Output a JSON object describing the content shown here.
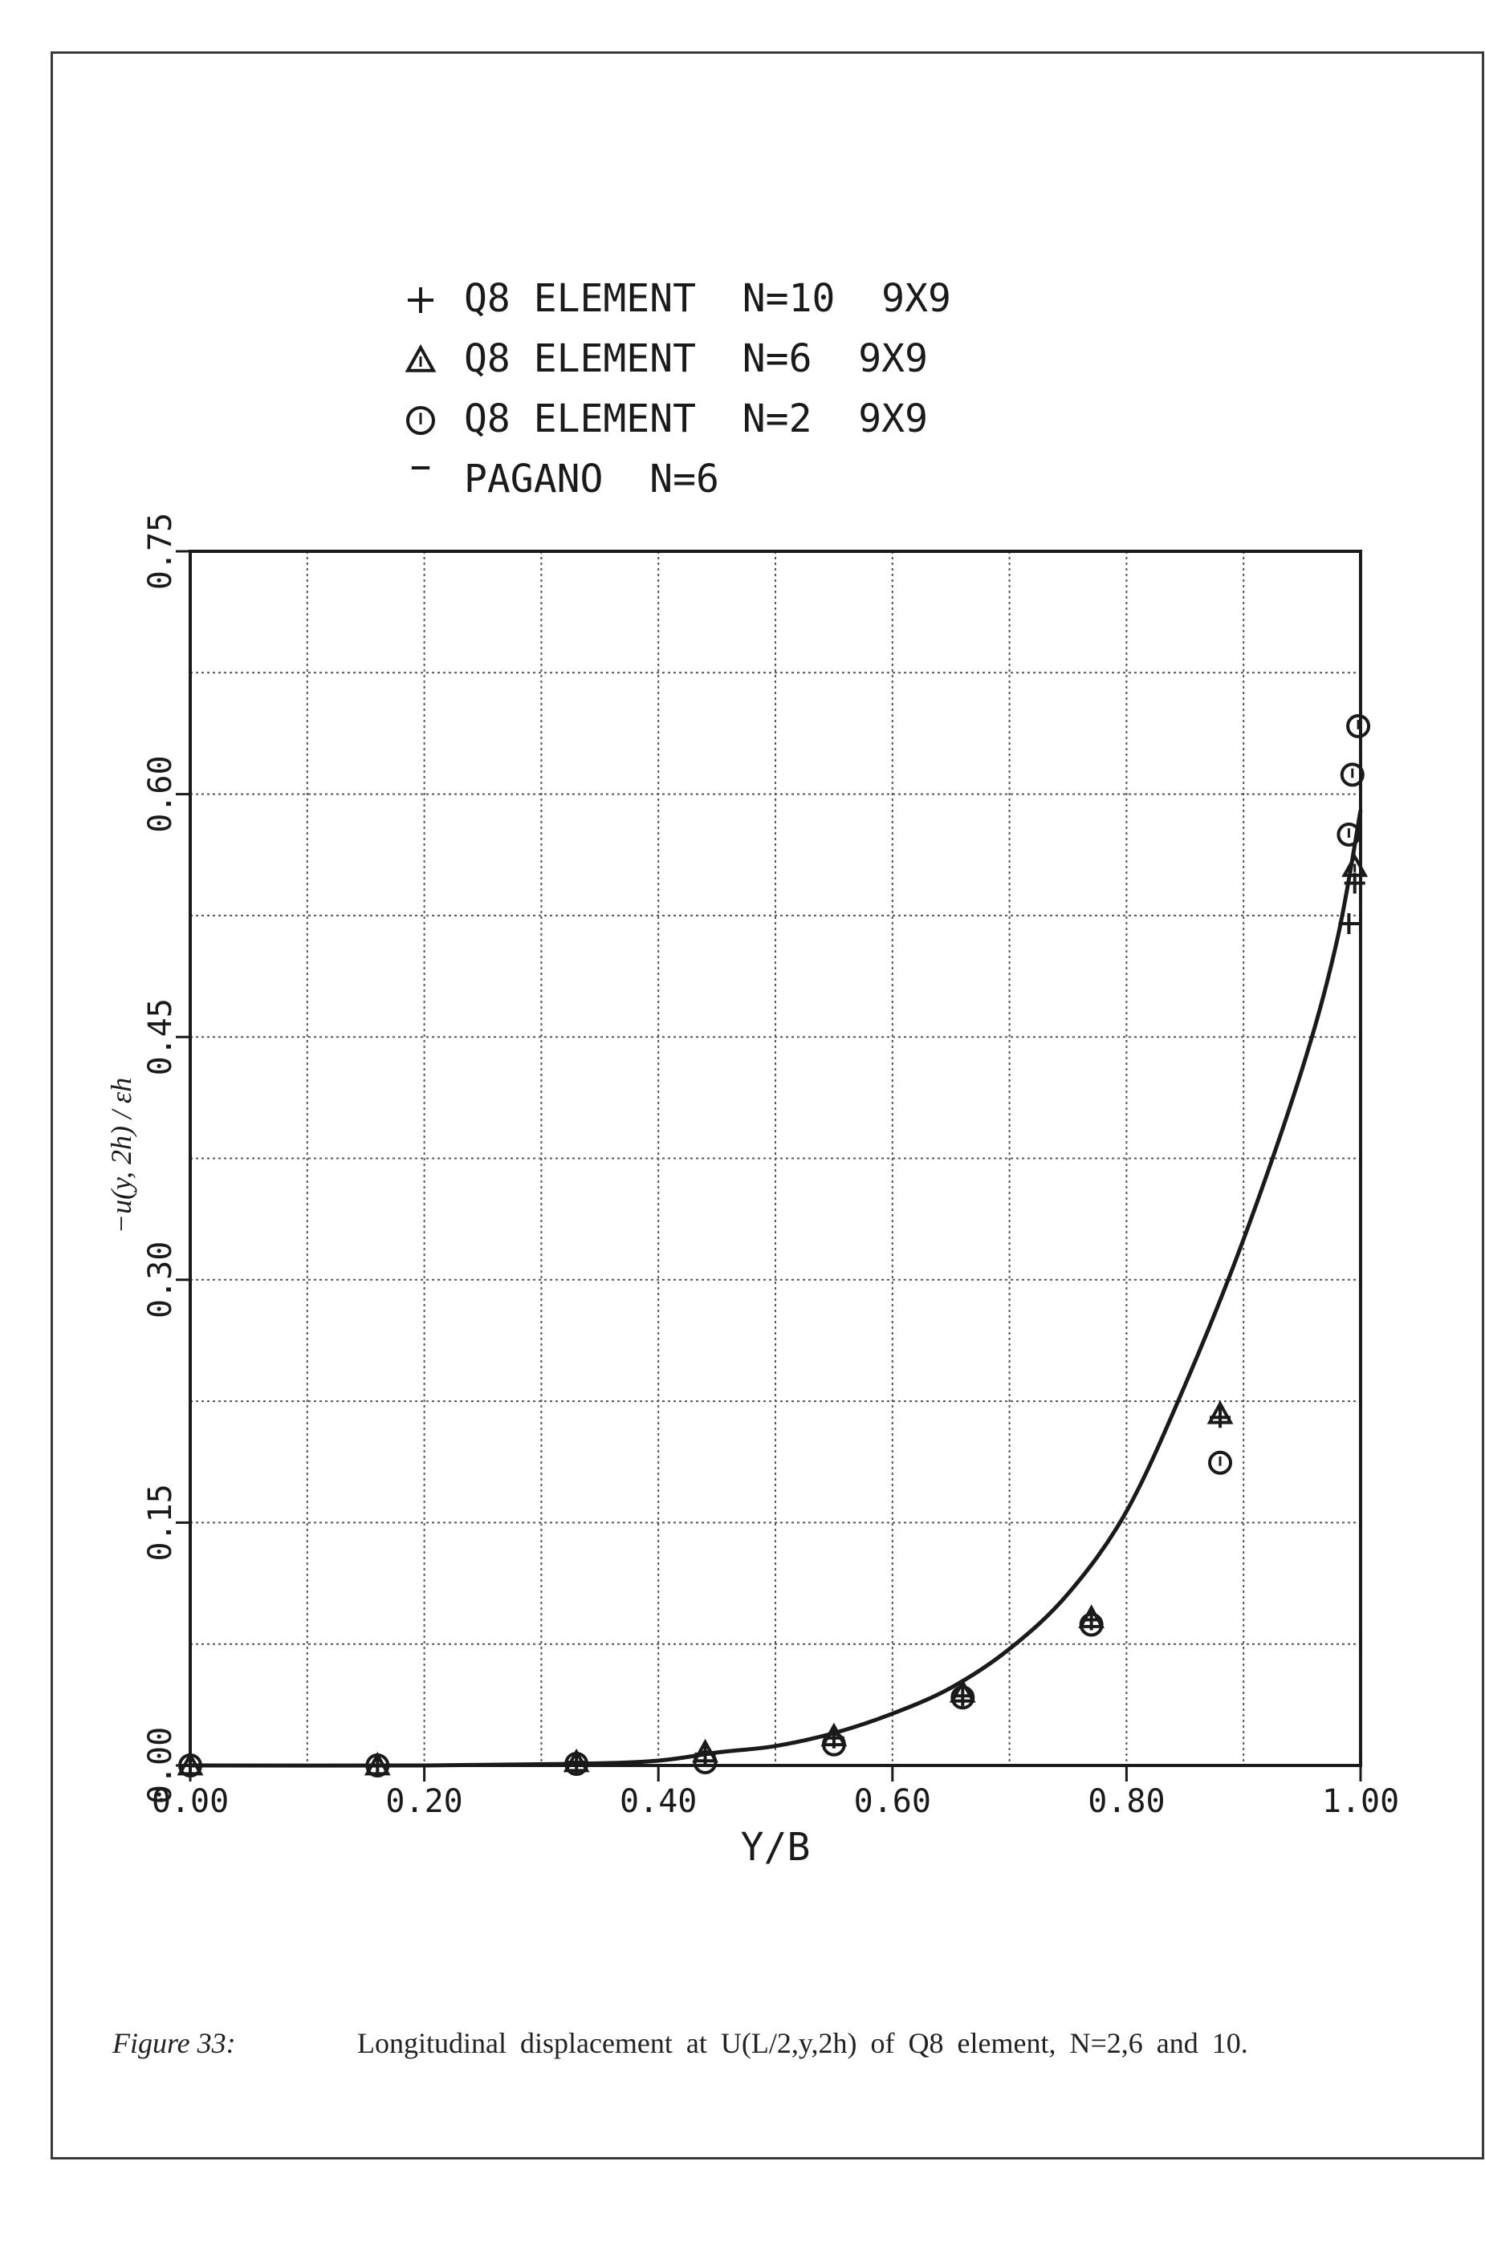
{
  "figure": {
    "label": "Figure 33:",
    "caption": "Longitudinal displacement at U(L/2,y,2h) of Q8 element, N=2,6 and 10."
  },
  "legend": [
    {
      "marker": "plus-icon",
      "symbol": "+",
      "label": "Q8 ELEMENT  N=10  9X9"
    },
    {
      "marker": "triangle-icon",
      "symbol": "△",
      "label": "Q8 ELEMENT  N=6  9X9"
    },
    {
      "marker": "circle-icon",
      "symbol": "⦶",
      "label": "Q8 ELEMENT  N=2  9X9"
    },
    {
      "marker": "dash-icon",
      "symbol": "-",
      "label": "PAGANO  N=6"
    }
  ],
  "axes": {
    "xlabel": "Y/B",
    "ylabel": "−u(y, 2h) / εh",
    "xticks": [
      "0.00",
      "0.20",
      "0.40",
      "0.60",
      "0.80",
      "1.00"
    ],
    "yticks": [
      "0.00",
      "0.15",
      "0.30",
      "0.45",
      "0.60",
      "0.75"
    ]
  },
  "chart_data": {
    "type": "line",
    "title": "",
    "xlabel": "Y/B",
    "ylabel": "-u(y,2h)/εh",
    "xlim": [
      0.0,
      1.0
    ],
    "ylim": [
      0.0,
      0.75
    ],
    "grid": true,
    "grid_x_step": 0.1,
    "grid_y_step": 0.075,
    "legend_position": "top-left, above plot",
    "series": [
      {
        "name": "Q8 ELEMENT N=10 9X9",
        "marker": "plus",
        "x": [
          0.0,
          0.16,
          0.33,
          0.44,
          0.55,
          0.66,
          0.77,
          0.88,
          0.99,
          0.995
        ],
        "y": [
          0.0,
          0.0,
          0.002,
          0.007,
          0.017,
          0.043,
          0.09,
          0.215,
          0.52,
          0.545
        ]
      },
      {
        "name": "Q8 ELEMENT N=6 9X9",
        "marker": "triangle",
        "x": [
          0.0,
          0.16,
          0.33,
          0.44,
          0.55,
          0.66,
          0.77,
          0.88,
          0.995
        ],
        "y": [
          0.0,
          0.0,
          0.002,
          0.008,
          0.018,
          0.045,
          0.091,
          0.217,
          0.555
        ]
      },
      {
        "name": "Q8 ELEMENT N=2 9X9",
        "marker": "circle",
        "x": [
          0.0,
          0.16,
          0.33,
          0.44,
          0.55,
          0.66,
          0.77,
          0.88,
          0.99,
          0.993,
          0.998
        ],
        "y": [
          0.0,
          0.0,
          0.001,
          0.002,
          0.013,
          0.042,
          0.087,
          0.187,
          0.575,
          0.612,
          0.642
        ]
      },
      {
        "name": "PAGANO N=6",
        "marker": "line",
        "x": [
          0.0,
          0.2,
          0.33,
          0.4,
          0.45,
          0.5,
          0.55,
          0.6,
          0.65,
          0.7,
          0.75,
          0.8,
          0.85,
          0.9,
          0.95,
          0.98,
          1.0
        ],
        "y": [
          0.0,
          0.0,
          0.001,
          0.003,
          0.008,
          0.012,
          0.02,
          0.032,
          0.048,
          0.072,
          0.106,
          0.157,
          0.235,
          0.325,
          0.43,
          0.51,
          0.59
        ]
      }
    ]
  },
  "colors": {
    "ink": "#1a1a1a",
    "grid": "#555555",
    "background": "#ffffff"
  }
}
